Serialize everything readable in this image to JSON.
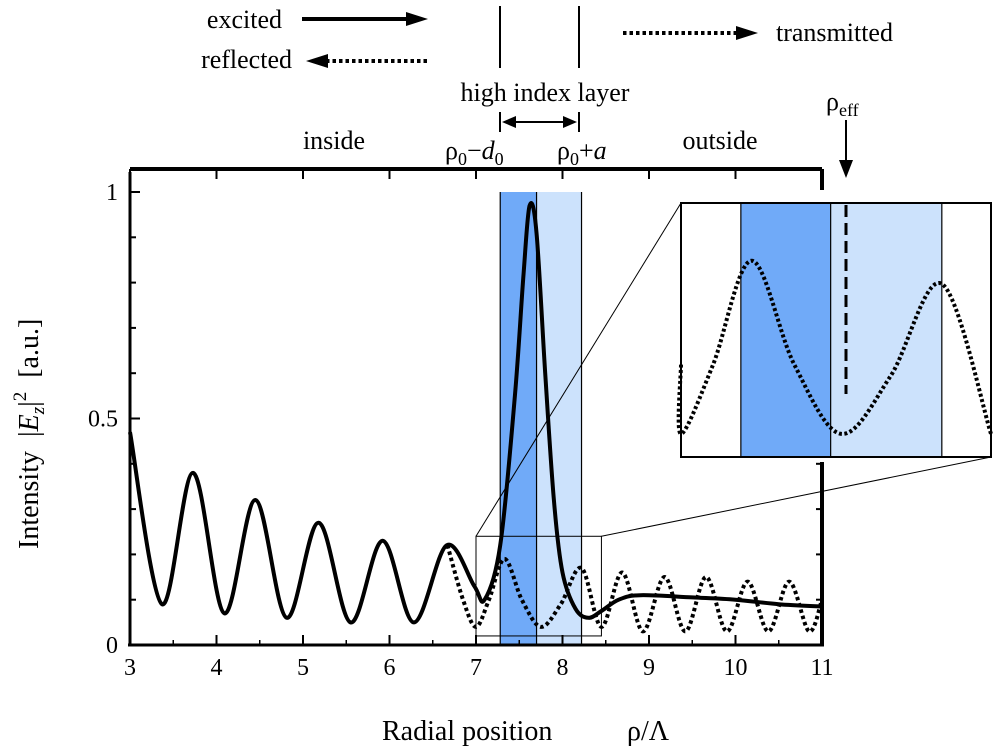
{
  "chart_data": {
    "type": "line",
    "xlabel": "Radial position",
    "xlabel_symbol": "ρ/Λ",
    "ylabel": {
      "pre": "Intensity",
      "abs_open": "|",
      "sym": "E",
      "sub": "z",
      "abs_close": "|",
      "sup": "2",
      "unit": "[a.u.]"
    },
    "xlim": [
      3,
      11
    ],
    "ylim": [
      0,
      1
    ],
    "xticks": [
      3,
      4,
      5,
      6,
      7,
      8,
      9,
      10,
      11
    ],
    "yticks": [
      0,
      0.5,
      1
    ],
    "ytick_labels": [
      "0",
      "0.5",
      "1"
    ],
    "grid": false,
    "layers": [
      {
        "name": "high index layer, inner part",
        "from": 7.28,
        "to": 7.7,
        "color": "#70aaf8"
      },
      {
        "name": "high index layer, outer part",
        "from": 7.7,
        "to": 8.22,
        "color": "#cce2fc"
      }
    ],
    "series": [
      {
        "name": "excited / reflected (inside)",
        "style": "solid",
        "x": [
          3.0,
          3.37,
          3.73,
          4.09,
          4.45,
          4.81,
          5.18,
          5.55,
          5.92,
          6.28,
          6.66,
          6.98,
          7.1,
          7.28,
          7.45,
          7.55,
          7.62,
          7.7,
          7.8,
          7.9,
          8.0,
          8.15,
          8.3,
          8.45,
          8.65,
          8.9,
          9.5,
          10.0,
          10.5,
          11.0
        ],
        "values": [
          0.47,
          0.09,
          0.38,
          0.07,
          0.32,
          0.06,
          0.27,
          0.05,
          0.23,
          0.05,
          0.22,
          0.13,
          0.1,
          0.22,
          0.55,
          0.82,
          0.97,
          0.91,
          0.6,
          0.32,
          0.16,
          0.08,
          0.06,
          0.075,
          0.1,
          0.11,
          0.105,
          0.1,
          0.09,
          0.085
        ]
      },
      {
        "name": "transmitted (outside)",
        "style": "dotted",
        "x": [
          6.67,
          6.85,
          7.0,
          7.15,
          7.33,
          7.53,
          7.75,
          7.98,
          8.22,
          8.45,
          8.69,
          8.93,
          9.18,
          9.42,
          9.66,
          9.9,
          10.14,
          10.38,
          10.62,
          10.85,
          11.0
        ],
        "values": [
          0.22,
          0.1,
          0.04,
          0.1,
          0.19,
          0.1,
          0.04,
          0.09,
          0.17,
          0.04,
          0.16,
          0.03,
          0.15,
          0.03,
          0.15,
          0.03,
          0.14,
          0.03,
          0.14,
          0.03,
          0.1
        ]
      }
    ],
    "inset_zoom": {
      "x": [
        7.0,
        8.45
      ],
      "y": [
        0.02,
        0.24
      ]
    },
    "annotations": {
      "excited": "excited",
      "reflected": "reflected",
      "transmitted": "transmitted",
      "layer": "high index layer",
      "inside": "inside",
      "outside": "outside",
      "rho_eff_main": "ρ",
      "rho_eff_sub": "eff",
      "rho0_minus": {
        "main": "ρ",
        "sub": "0",
        "op": "−",
        "var": "d",
        "var_sub": "0"
      },
      "rho0_plus": {
        "main": "ρ",
        "sub": "0",
        "op": "+",
        "var": "a"
      }
    }
  }
}
